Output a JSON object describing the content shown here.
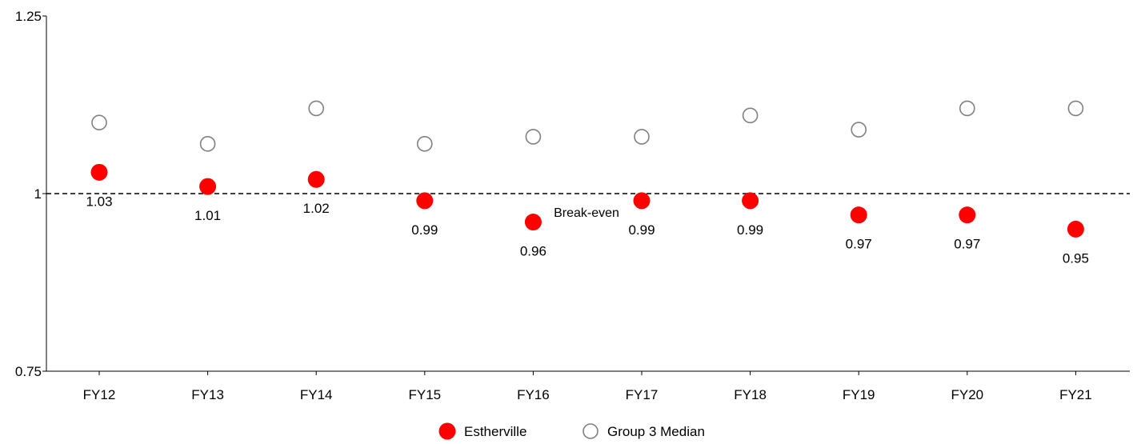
{
  "chart_data": {
    "type": "scatter",
    "categories": [
      "FY12",
      "FY13",
      "FY14",
      "FY15",
      "FY16",
      "FY17",
      "FY18",
      "FY19",
      "FY20",
      "FY21"
    ],
    "series": [
      {
        "name": "Estherville",
        "values": [
          1.03,
          1.01,
          1.02,
          0.99,
          0.96,
          0.99,
          0.99,
          0.97,
          0.97,
          0.95
        ],
        "color": "#ff0000",
        "marker": "filled-circle",
        "data_labels": [
          "1.03",
          "1.01",
          "1.02",
          "0.99",
          "0.96",
          "0.99",
          "0.99",
          "0.97",
          "0.97",
          "0.95"
        ]
      },
      {
        "name": "Group 3 Median",
        "values": [
          1.1,
          1.07,
          1.12,
          1.07,
          1.08,
          1.08,
          1.11,
          1.09,
          1.12,
          1.12
        ],
        "color": "#808080",
        "marker": "hollow-circle"
      }
    ],
    "ylim": [
      0.75,
      1.25
    ],
    "yticks": [
      "0.75",
      "1",
      "1.25"
    ],
    "reference_line": {
      "value": 1.0,
      "label": "Break-even",
      "style": "dashed"
    },
    "grid": false,
    "legend_position": "bottom-center",
    "title": "",
    "xlabel": "",
    "ylabel": ""
  }
}
